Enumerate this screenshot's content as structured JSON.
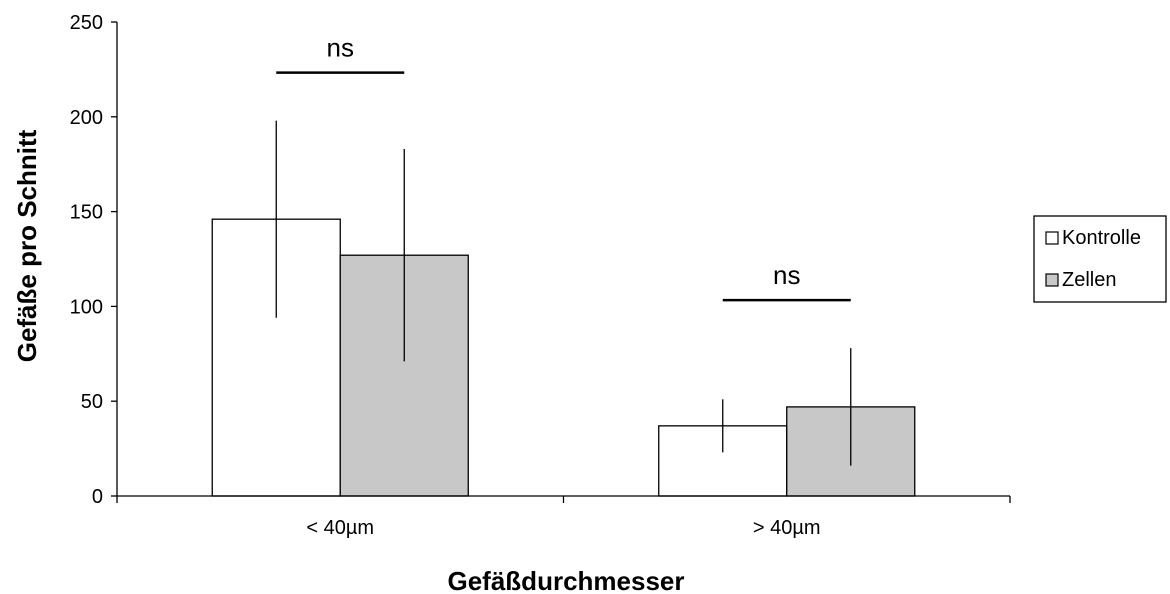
{
  "chart_data": {
    "type": "bar",
    "xlabel": "Gefäßdurchmesser",
    "ylabel": "Gefäße pro Schnitt",
    "ylim": [
      0,
      250
    ],
    "yticks": [
      0,
      50,
      100,
      150,
      200,
      250
    ],
    "categories": [
      "< 40µm",
      "> 40µm"
    ],
    "series": [
      {
        "name": "Kontrolle",
        "values": [
          146,
          37
        ],
        "errors": [
          52,
          14
        ],
        "color": "#ffffff"
      },
      {
        "name": "Zellen",
        "values": [
          127,
          47
        ],
        "errors": [
          56,
          31
        ],
        "color": "#c8c8c8"
      }
    ],
    "annotations": [
      "ns",
      "ns"
    ],
    "legend": "right",
    "grid": false
  }
}
